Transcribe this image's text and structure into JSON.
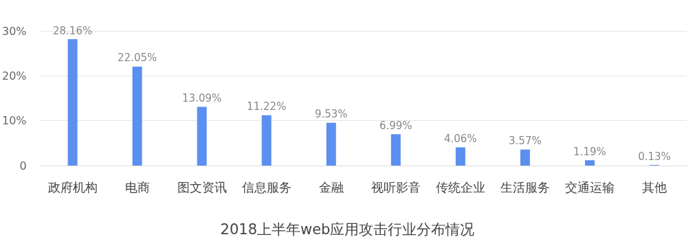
{
  "chart_data": {
    "type": "bar",
    "title": "2018上半年web应用攻击行业分布情况",
    "categories": [
      "政府机构",
      "电商",
      "图文资讯",
      "信息服务",
      "金融",
      "视听影音",
      "传统企业",
      "生活服务",
      "交通运输",
      "其他"
    ],
    "values": [
      28.16,
      22.05,
      13.09,
      11.22,
      9.53,
      6.99,
      4.06,
      3.57,
      1.19,
      0.13
    ],
    "value_labels": [
      "28.16%",
      "22.05%",
      "13.09%",
      "11.22%",
      "9.53%",
      "6.99%",
      "4.06%",
      "3.57%",
      "1.19%",
      "0.13%"
    ],
    "color": "#5b8ff0",
    "ylim": [
      0,
      30
    ],
    "yticks": [
      0,
      {
        "value": 10,
        "label": "10%"
      },
      {
        "value": 20,
        "label": "20%"
      },
      {
        "value": 30,
        "label": "30%"
      }
    ],
    "grid": "y"
  }
}
